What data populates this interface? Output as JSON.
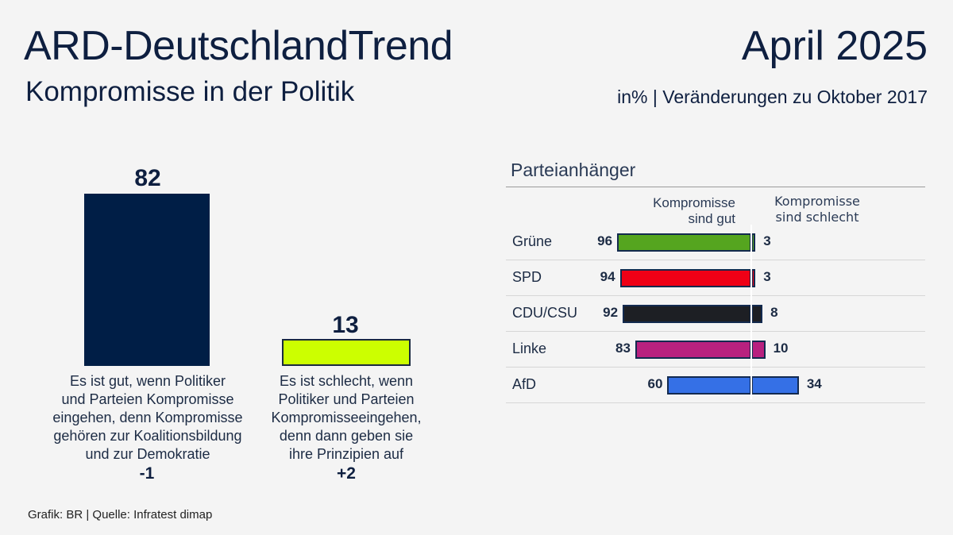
{
  "header": {
    "title": "ARD-DeutschlandTrend",
    "subtitle": "Kompromisse in der Politik",
    "date": "April 2025",
    "unit_note": "in% | Veränderungen zu Oktober 2017"
  },
  "footer": {
    "source": "Grafik: BR | Quelle: Infratest dimap"
  },
  "chart_data": [
    {
      "type": "bar",
      "title": "Kompromisse in der Politik",
      "categories": [
        "Es ist gut, wenn Politiker und Parteien Kompromisse eingehen, denn Kompromisse gehören zur Koalitionsbildung und zur Demokratie",
        "Es ist schlecht, wenn Politiker und Parteien Kompromisseeingehen, denn dann geben sie ihre Prinzipien auf"
      ],
      "category_lines": [
        [
          "Es ist gut, wenn Politiker",
          "und Parteien Kompromisse",
          "eingehen, denn Kompromisse",
          "gehören zur Koalitionsbildung",
          "und zur Demokratie"
        ],
        [
          "Es ist schlecht, wenn",
          "Politiker und Parteien",
          "Kompromisseeingehen,",
          "denn dann geben sie",
          "ihre Prinzipien auf"
        ]
      ],
      "values": [
        82,
        13
      ],
      "value_labels": [
        "82",
        "13"
      ],
      "changes": [
        "-1",
        "+2"
      ],
      "colors": [
        "#001e46",
        "#ccff00"
      ],
      "ylim": [
        0,
        100
      ]
    },
    {
      "type": "bar",
      "orientation": "diverging-horizontal",
      "title": "Parteianhänger",
      "column_headers": {
        "left": [
          "Kompromisse",
          "sind gut"
        ],
        "right": [
          "Kompromisse",
          "sind schlecht"
        ]
      },
      "categories": [
        "Grüne",
        "SPD",
        "CDU/CSU",
        "Linke",
        "AfD"
      ],
      "series": [
        {
          "name": "Kompromisse sind gut",
          "values": [
            96,
            94,
            92,
            83,
            60
          ]
        },
        {
          "name": "Kompromisse sind schlecht",
          "values": [
            3,
            3,
            8,
            10,
            34
          ]
        }
      ],
      "colors": [
        "#55a51f",
        "#ef0016",
        "#1d1f24",
        "#b8217f",
        "#3570e6"
      ]
    }
  ]
}
